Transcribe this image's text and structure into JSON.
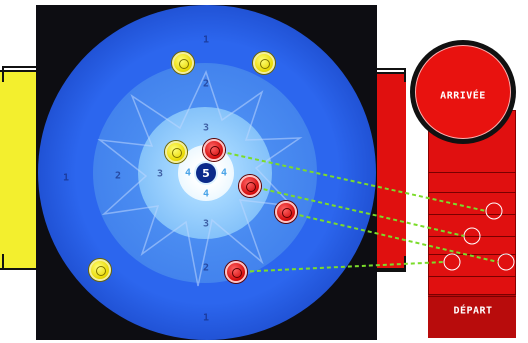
{
  "board": {
    "center_number": "5",
    "ring_numbers": [
      "1",
      "2",
      "3",
      "4",
      "4"
    ]
  },
  "finish_track": {
    "arrival_label": "ARRIVÉE",
    "departure_label": "DÉPART"
  },
  "pieces": {
    "yellow_count": 4,
    "red_count": 4
  },
  "colors": {
    "board_blue": "#1f4fd6",
    "inner_light_blue": "#d7f0ff",
    "yellow_piece": "#f0e000",
    "red_piece": "#e51010",
    "track_red": "#e01010",
    "connector_green": "#7bdc2a"
  }
}
